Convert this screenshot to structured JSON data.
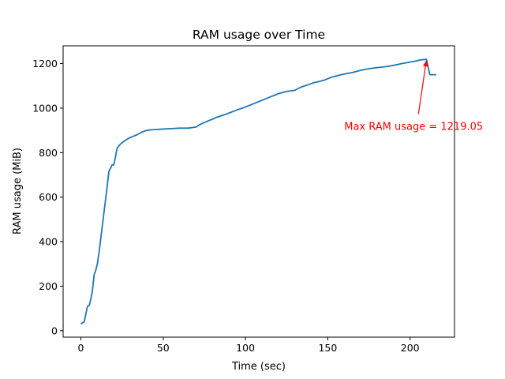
{
  "chart_data": {
    "type": "line",
    "title": "RAM usage over Time",
    "xlabel": "Time (sec)",
    "ylabel": "RAM usage (MiB)",
    "xlim": [
      -10.8,
      227
    ],
    "ylim": [
      -29,
      1280
    ],
    "xticks": [
      0,
      50,
      100,
      150,
      200
    ],
    "yticks": [
      0,
      200,
      400,
      600,
      800,
      1000,
      1200
    ],
    "xtick_labels": [
      "0",
      "50",
      "100",
      "150",
      "200"
    ],
    "ytick_labels": [
      "0",
      "200",
      "400",
      "600",
      "800",
      "1000",
      "1200"
    ],
    "grid": false,
    "series": [
      {
        "color": "#1f77b4",
        "x": [
          0,
          2,
          4,
          5,
          6,
          7,
          8,
          9,
          10,
          11,
          12,
          13,
          14,
          15,
          16,
          17,
          18,
          19,
          20,
          21,
          22,
          23,
          24,
          25,
          26,
          28,
          30,
          32,
          34,
          36,
          38,
          40,
          42,
          44,
          46,
          48,
          50,
          55,
          60,
          65,
          70,
          72,
          74,
          76,
          78,
          80,
          82,
          84,
          86,
          88,
          90,
          95,
          100,
          105,
          110,
          115,
          120,
          125,
          130,
          132,
          134,
          136,
          138,
          140,
          142,
          144,
          146,
          148,
          150,
          152,
          154,
          156,
          158,
          160,
          165,
          170,
          175,
          180,
          185,
          190,
          195,
          200,
          204,
          206,
          208,
          210,
          212,
          214,
          216
        ],
        "y": [
          30,
          40,
          110,
          112,
          140,
          180,
          250,
          270,
          300,
          350,
          410,
          470,
          530,
          590,
          650,
          715,
          730,
          745,
          745,
          780,
          820,
          830,
          838,
          845,
          850,
          860,
          868,
          874,
          880,
          888,
          895,
          900,
          902,
          903,
          904,
          905,
          906,
          908,
          910,
          910,
          915,
          925,
          932,
          938,
          945,
          950,
          958,
          962,
          968,
          972,
          978,
          992,
          1005,
          1020,
          1035,
          1050,
          1065,
          1075,
          1080,
          1088,
          1095,
          1100,
          1105,
          1110,
          1115,
          1118,
          1122,
          1126,
          1132,
          1138,
          1142,
          1146,
          1150,
          1153,
          1160,
          1170,
          1177,
          1182,
          1186,
          1192,
          1200,
          1207,
          1212,
          1216,
          1218,
          1219.05,
          1150,
          1150,
          1150
        ]
      }
    ],
    "annotation": {
      "text": "Max RAM usage = 1219.05",
      "color": "#ff0000",
      "point": {
        "x": 210,
        "y": 1219.05
      },
      "text_at": {
        "x": 160,
        "y": 920
      }
    }
  }
}
